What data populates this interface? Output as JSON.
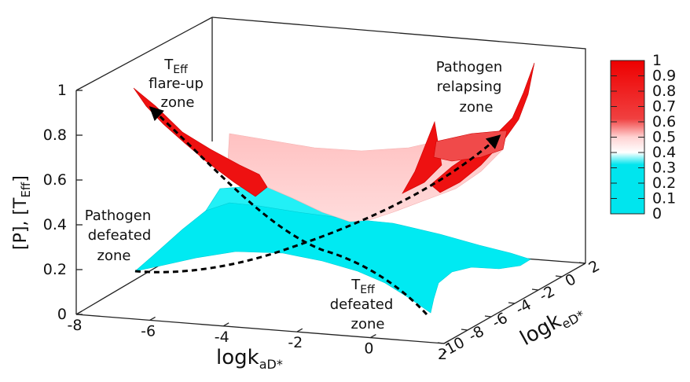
{
  "chart_data": {
    "type": "surface3d",
    "x_axis": {
      "label_main": "logk",
      "label_sub": "aD*",
      "range": [
        -8,
        2
      ],
      "ticks": [
        "-8",
        "-6",
        "-4",
        "-2",
        "0",
        "2"
      ]
    },
    "y_axis": {
      "label_main": "logk",
      "label_sub": "eD*",
      "range": [
        -10,
        2
      ],
      "ticks": [
        "-10",
        "-8",
        "-6",
        "-4",
        "-2",
        "0",
        "2"
      ]
    },
    "z_axis": {
      "label": "[P], [T",
      "label_sub": "Eff",
      "label_end": "]",
      "range": [
        0,
        1
      ],
      "ticks": [
        "0",
        "0.2",
        "0.4",
        "0.6",
        "0.8",
        "1"
      ]
    },
    "colorbar": {
      "range": [
        0,
        1
      ],
      "ticks": [
        "0",
        "0.1",
        "0.2",
        "0.3",
        "0.4",
        "0.5",
        "0.6",
        "0.7",
        "0.8",
        "0.9",
        "1"
      ],
      "colors": {
        "low": "#00e5ee",
        "mid_low": "#ffffff",
        "mid_high": "#ffc8c8",
        "high": "#ee0000"
      }
    },
    "annotations": {
      "teff_flare": {
        "line1_main": "T",
        "line1_sub": "Eff",
        "line2": "flare-up",
        "line3": "zone"
      },
      "pathogen_relapse": {
        "line1": "Pathogen",
        "line2": "relapsing",
        "line3": "zone"
      },
      "pathogen_defeated": {
        "line1": "Pathogen",
        "line2": "defeated",
        "line3": "zone"
      },
      "teff_defeated": {
        "line1_main": "T",
        "line1_sub": "Eff",
        "line2": "defeated",
        "line3": "zone"
      }
    },
    "grid": false,
    "legend": "right"
  }
}
